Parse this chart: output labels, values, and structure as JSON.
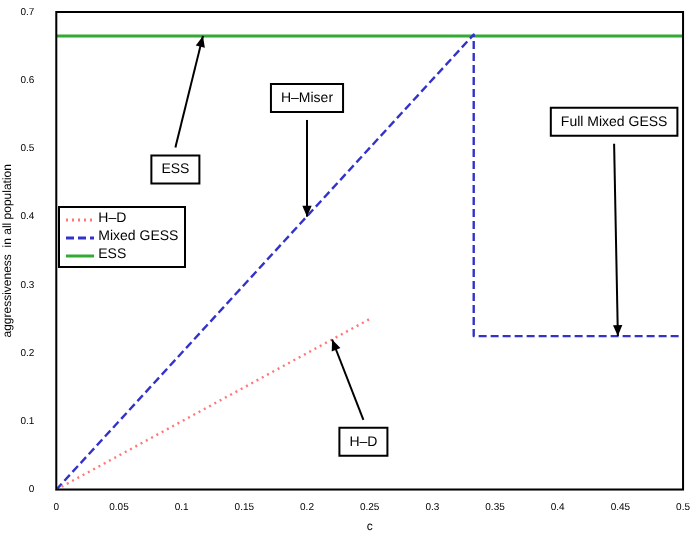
{
  "chart_data": {
    "type": "line",
    "xlabel": "c",
    "ylabel": "aggressiveness  in all population",
    "xlim": [
      0,
      0.5
    ],
    "xticks": [
      0,
      0.05,
      0.1,
      0.15,
      0.2,
      0.25,
      0.3,
      0.35,
      0.4,
      0.45,
      0.5
    ],
    "ylim": [
      0,
      0.7
    ],
    "yticks": [
      0,
      0.1,
      0.2,
      0.3,
      0.4,
      0.5,
      0.6,
      0.7
    ],
    "series": [
      {
        "name": "H–D",
        "color": "#ff7777",
        "line_style": "dotted",
        "x": [
          0,
          0.25
        ],
        "values": [
          0,
          0.25
        ]
      },
      {
        "name": "Mixed GESS",
        "color": "#3333cc",
        "line_style": "dashed",
        "x": [
          0,
          0.333,
          0.333,
          0.5
        ],
        "values": [
          0,
          0.667,
          0.225,
          0.225
        ]
      },
      {
        "name": "ESS",
        "color": "#33aa33",
        "line_style": "solid",
        "x": [
          0,
          0.5
        ],
        "values": [
          0.665,
          0.665
        ]
      }
    ],
    "legend": "left",
    "grid": false,
    "marker": "none",
    "annotations": [
      {
        "text": "ESS",
        "x": 0.117,
        "y": 0.665
      },
      {
        "text": "H–Miser",
        "x": 0.2,
        "y": 0.4
      },
      {
        "text": "Full Mixed GESS",
        "x": 0.448,
        "y": 0.225
      },
      {
        "text": "H–D",
        "x": 0.22,
        "y": 0.22
      }
    ]
  }
}
